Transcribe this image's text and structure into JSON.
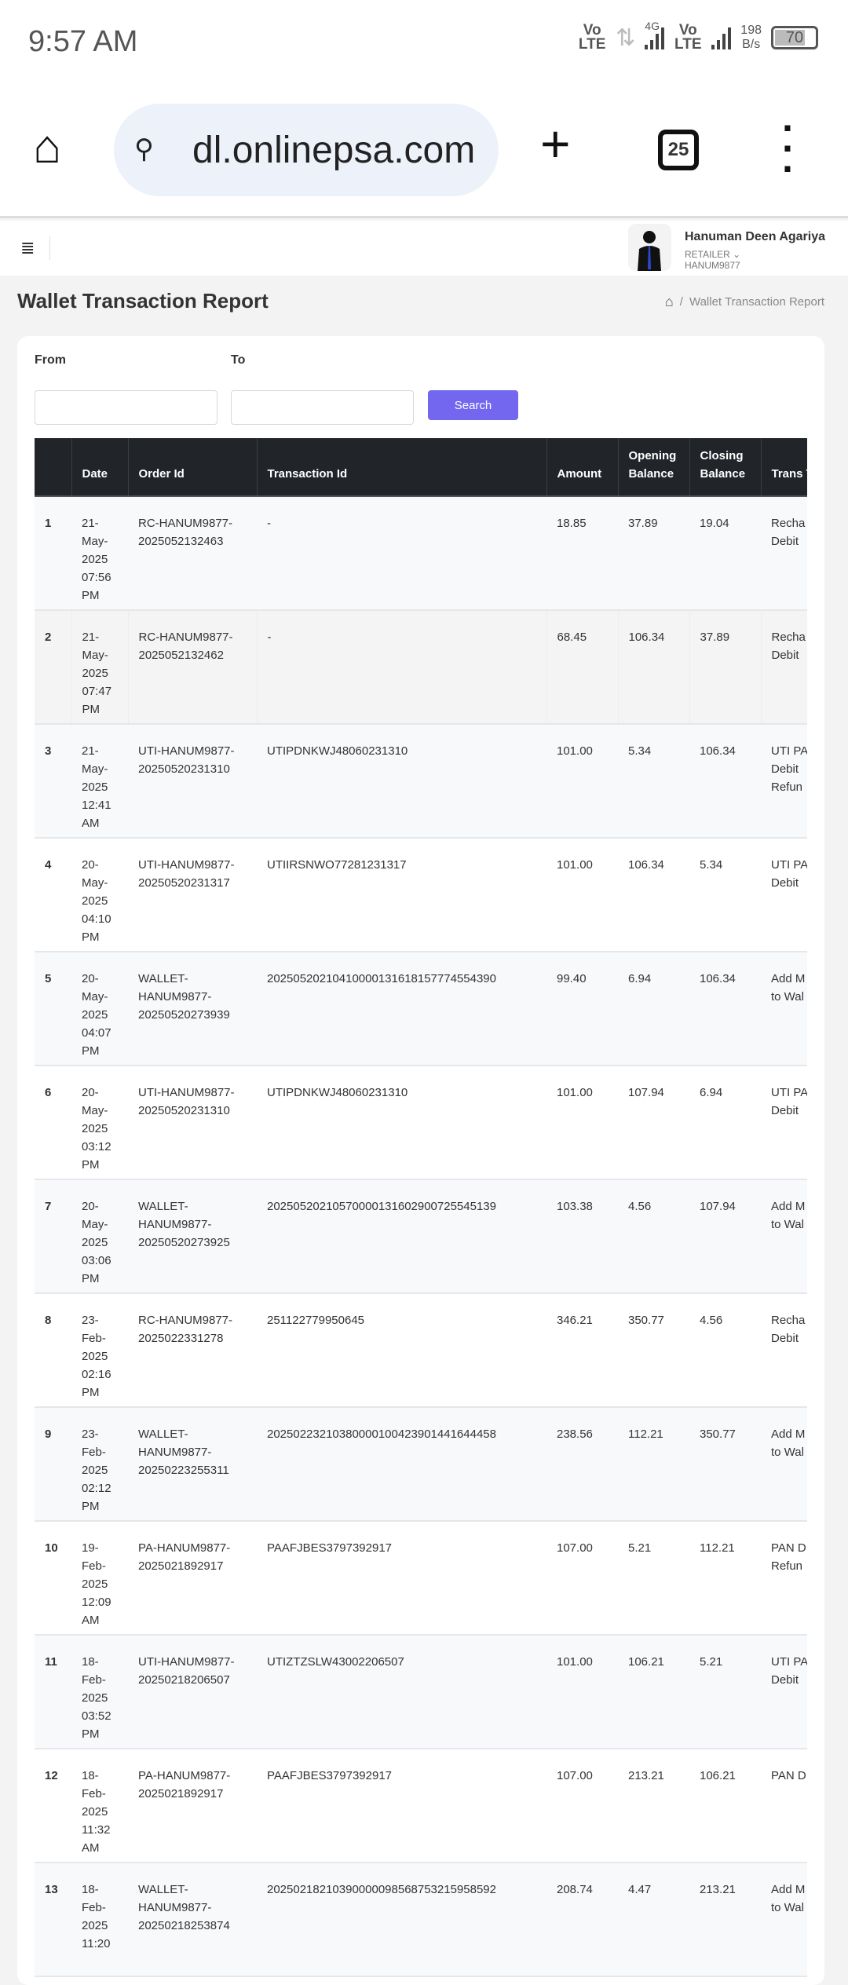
{
  "status_bar": {
    "time": "9:57 AM",
    "network_label_1": "Vo LTE",
    "network_type": "4G",
    "network_label_2": "Vo LTE",
    "speed_value": "198",
    "speed_unit": "B/s",
    "battery": "70"
  },
  "browser": {
    "url": "dl.onlinepsa.com",
    "tab_count": "25"
  },
  "header": {
    "user_name": "Hanuman Deen Agariya",
    "role": "RETAILER",
    "user_id": "HANUM9877"
  },
  "page": {
    "title": "Wallet Transaction Report",
    "breadcrumb": "Wallet Transaction Report"
  },
  "filters": {
    "from_label": "From",
    "to_label": "To",
    "from_value": "",
    "to_value": "",
    "search_label": "Search"
  },
  "table": {
    "columns": [
      "",
      "Date",
      "Order Id",
      "Transaction Id",
      "Amount",
      "Opening Balance",
      "Closing Balance",
      "Trans Type"
    ],
    "rows": [
      {
        "n": "1",
        "date": "21-May-2025 07:56 PM",
        "order": "RC-HANUM9877-2025052132463",
        "txn": "-",
        "amount": "18.85",
        "opening": "37.89",
        "closing": "19.04",
        "type": [
          "Recha",
          "Debit"
        ]
      },
      {
        "n": "2",
        "date": "21-May-2025 07:47 PM",
        "order": "RC-HANUM9877-2025052132462",
        "txn": "-",
        "amount": "68.45",
        "opening": "106.34",
        "closing": "37.89",
        "type": [
          "Recha",
          "Debit"
        ]
      },
      {
        "n": "3",
        "date": "21-May-2025 12:41 AM",
        "order": "UTI-HANUM9877-20250520231310",
        "txn": "UTIPDNKWJ48060231310",
        "amount": "101.00",
        "opening": "5.34",
        "closing": "106.34",
        "type": [
          "UTI PA",
          "Debit",
          "Refun"
        ]
      },
      {
        "n": "4",
        "date": "20-May-2025 04:10 PM",
        "order": "UTI-HANUM9877-20250520231317",
        "txn": "UTIIRSNWO77281231317",
        "amount": "101.00",
        "opening": "106.34",
        "closing": "5.34",
        "type": [
          "UTI PA",
          "Debit"
        ]
      },
      {
        "n": "5",
        "date": "20-May-2025 04:07 PM",
        "order": "WALLET-HANUM9877-20250520273939",
        "txn": "20250520210410000131618157774554390",
        "amount": "99.40",
        "opening": "6.94",
        "closing": "106.34",
        "type": [
          "Add M",
          "to Wal"
        ]
      },
      {
        "n": "6",
        "date": "20-May-2025 03:12 PM",
        "order": "UTI-HANUM9877-20250520231310",
        "txn": "UTIPDNKWJ48060231310",
        "amount": "101.00",
        "opening": "107.94",
        "closing": "6.94",
        "type": [
          "UTI PA",
          "Debit"
        ]
      },
      {
        "n": "7",
        "date": "20-May-2025 03:06 PM",
        "order": "WALLET-HANUM9877-20250520273925",
        "txn": "20250520210570000131602900725545139",
        "amount": "103.38",
        "opening": "4.56",
        "closing": "107.94",
        "type": [
          "Add M",
          "to Wal"
        ]
      },
      {
        "n": "8",
        "date": "23-Feb-2025 02:16 PM",
        "order": "RC-HANUM9877-2025022331278",
        "txn": "251122779950645",
        "amount": "346.21",
        "opening": "350.77",
        "closing": "4.56",
        "type": [
          "Recha",
          "Debit"
        ]
      },
      {
        "n": "9",
        "date": "23-Feb-2025 02:12 PM",
        "order": "WALLET-HANUM9877-20250223255311",
        "txn": "20250223210380000100423901441644458",
        "amount": "238.56",
        "opening": "112.21",
        "closing": "350.77",
        "type": [
          "Add M",
          "to Wal"
        ]
      },
      {
        "n": "10",
        "date": "19-Feb-2025 12:09 AM",
        "order": "PA-HANUM9877-2025021892917",
        "txn": "PAAFJBES3797392917",
        "amount": "107.00",
        "opening": "5.21",
        "closing": "112.21",
        "type": [
          "PAN D",
          "Refun"
        ]
      },
      {
        "n": "11",
        "date": "18-Feb-2025 03:52 PM",
        "order": "UTI-HANUM9877-20250218206507",
        "txn": "UTIZTZSLW43002206507",
        "amount": "101.00",
        "opening": "106.21",
        "closing": "5.21",
        "type": [
          "UTI PA",
          "Debit"
        ]
      },
      {
        "n": "12",
        "date": "18-Feb-2025 11:32 AM",
        "order": "PA-HANUM9877-2025021892917",
        "txn": "PAAFJBES3797392917",
        "amount": "107.00",
        "opening": "213.21",
        "closing": "106.21",
        "type": [
          "PAN D"
        ]
      },
      {
        "n": "13",
        "date": "18-Feb-2025 11:20",
        "order": "WALLET-HANUM9877-20250218253874",
        "txn": "20250218210390000098568753215958592",
        "amount": "208.74",
        "opening": "4.47",
        "closing": "213.21",
        "type": [
          "Add M",
          "to Wal"
        ]
      }
    ]
  },
  "colors": {
    "accent": "#7367f0",
    "table_header": "#212529"
  }
}
